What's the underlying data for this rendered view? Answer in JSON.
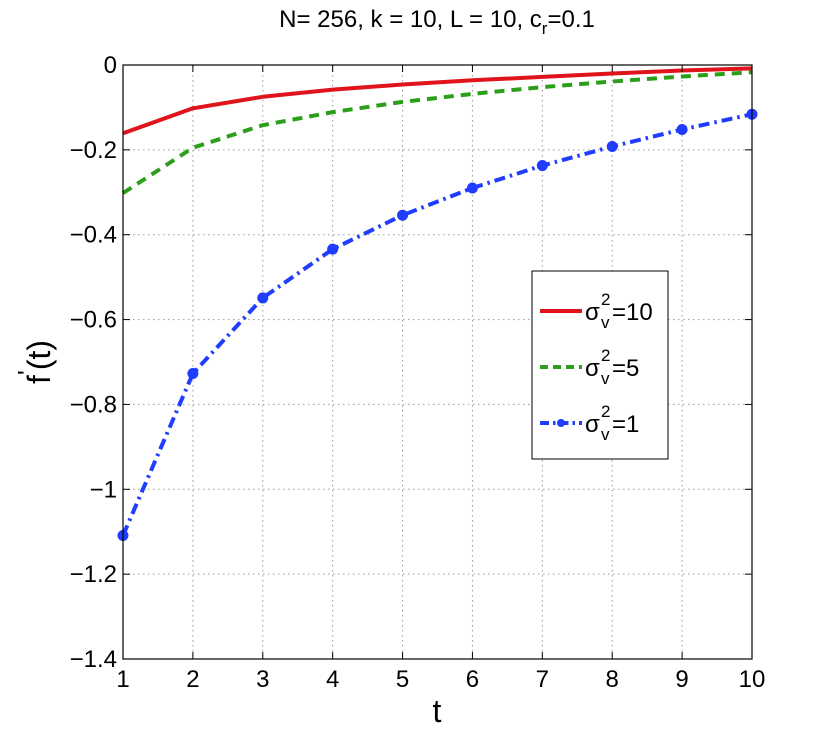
{
  "chart_data": {
    "type": "line",
    "title": {
      "main": "N= 256, k = 10, L = 10, c",
      "sub": "r",
      "tail": "=0.1"
    },
    "xlabel": "t",
    "ylabel": {
      "main": "f",
      "sup": "'",
      "tail": "(t)"
    },
    "xlim": [
      1,
      10
    ],
    "ylim": [
      -1.4,
      0
    ],
    "xticks": [
      1,
      2,
      3,
      4,
      5,
      6,
      7,
      8,
      9,
      10
    ],
    "yticks": [
      0,
      -0.2,
      -0.4,
      -0.6,
      -0.8,
      -1,
      -1.2,
      -1.4
    ],
    "ytick_labels": [
      "0",
      "−0.2",
      "−0.4",
      "−0.6",
      "−0.8",
      "−1",
      "−1.2",
      "−1.4"
    ],
    "grid": true,
    "legend_position": "right",
    "x": [
      1,
      2,
      3,
      4,
      5,
      6,
      7,
      8,
      9,
      10
    ],
    "series": [
      {
        "name": "σ²ᵥ=10",
        "label": {
          "base": "σ",
          "sup": "2",
          "sub": "v",
          "tail": "=10"
        },
        "color": "#e0141c",
        "style": "solid",
        "marker": "none",
        "values": [
          -0.161,
          -0.102,
          -0.075,
          -0.058,
          -0.046,
          -0.036,
          -0.028,
          -0.02,
          -0.013,
          -0.008
        ]
      },
      {
        "name": "σ²ᵥ=5",
        "label": {
          "base": "σ",
          "sup": "2",
          "sub": "v",
          "tail": "=5"
        },
        "color": "#2c9f1a",
        "style": "dashed",
        "marker": "none",
        "values": [
          -0.302,
          -0.195,
          -0.142,
          -0.111,
          -0.087,
          -0.068,
          -0.052,
          -0.039,
          -0.027,
          -0.017
        ]
      },
      {
        "name": "σ²ᵥ=1",
        "label": {
          "base": "σ",
          "sup": "2",
          "sub": "v",
          "tail": "=1"
        },
        "color": "#1f3cff",
        "style": "dashdot",
        "marker": "circle",
        "values": [
          -1.109,
          -0.727,
          -0.549,
          -0.434,
          -0.354,
          -0.29,
          -0.237,
          -0.192,
          -0.152,
          -0.116
        ]
      }
    ]
  }
}
